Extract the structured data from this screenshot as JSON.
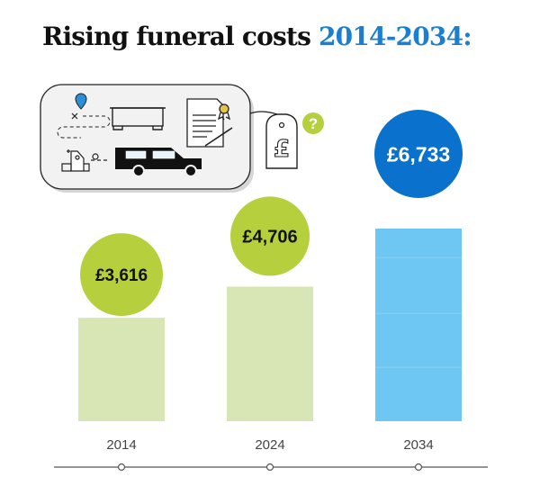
{
  "title": {
    "main": "Rising funeral costs",
    "years": "2014-2034:"
  },
  "illustration": {
    "price_tag_symbol": "£",
    "question_mark": "?",
    "icons": [
      "map-pin-icon",
      "coffin-icon",
      "certificate-icon",
      "church-icon",
      "hearse-icon",
      "price-tag-icon",
      "question-badge-icon"
    ]
  },
  "colors": {
    "green_bar": "#d8e6b5",
    "green_circle": "#b5cf3d",
    "blue_bar": "#6ec6f2",
    "blue_circle": "#0a72cc",
    "blue_title": "#1a7fd0",
    "axis": "#555555"
  },
  "chart_data": {
    "type": "bar",
    "categories": [
      "2014",
      "2024",
      "2034"
    ],
    "values": [
      3616,
      4706,
      6733
    ],
    "value_labels": [
      "£3,616",
      "£4,706",
      "£6,733"
    ],
    "title": "Rising funeral costs 2014-2034:",
    "xlabel": "",
    "ylabel": "",
    "grid": false,
    "legend": false
  }
}
